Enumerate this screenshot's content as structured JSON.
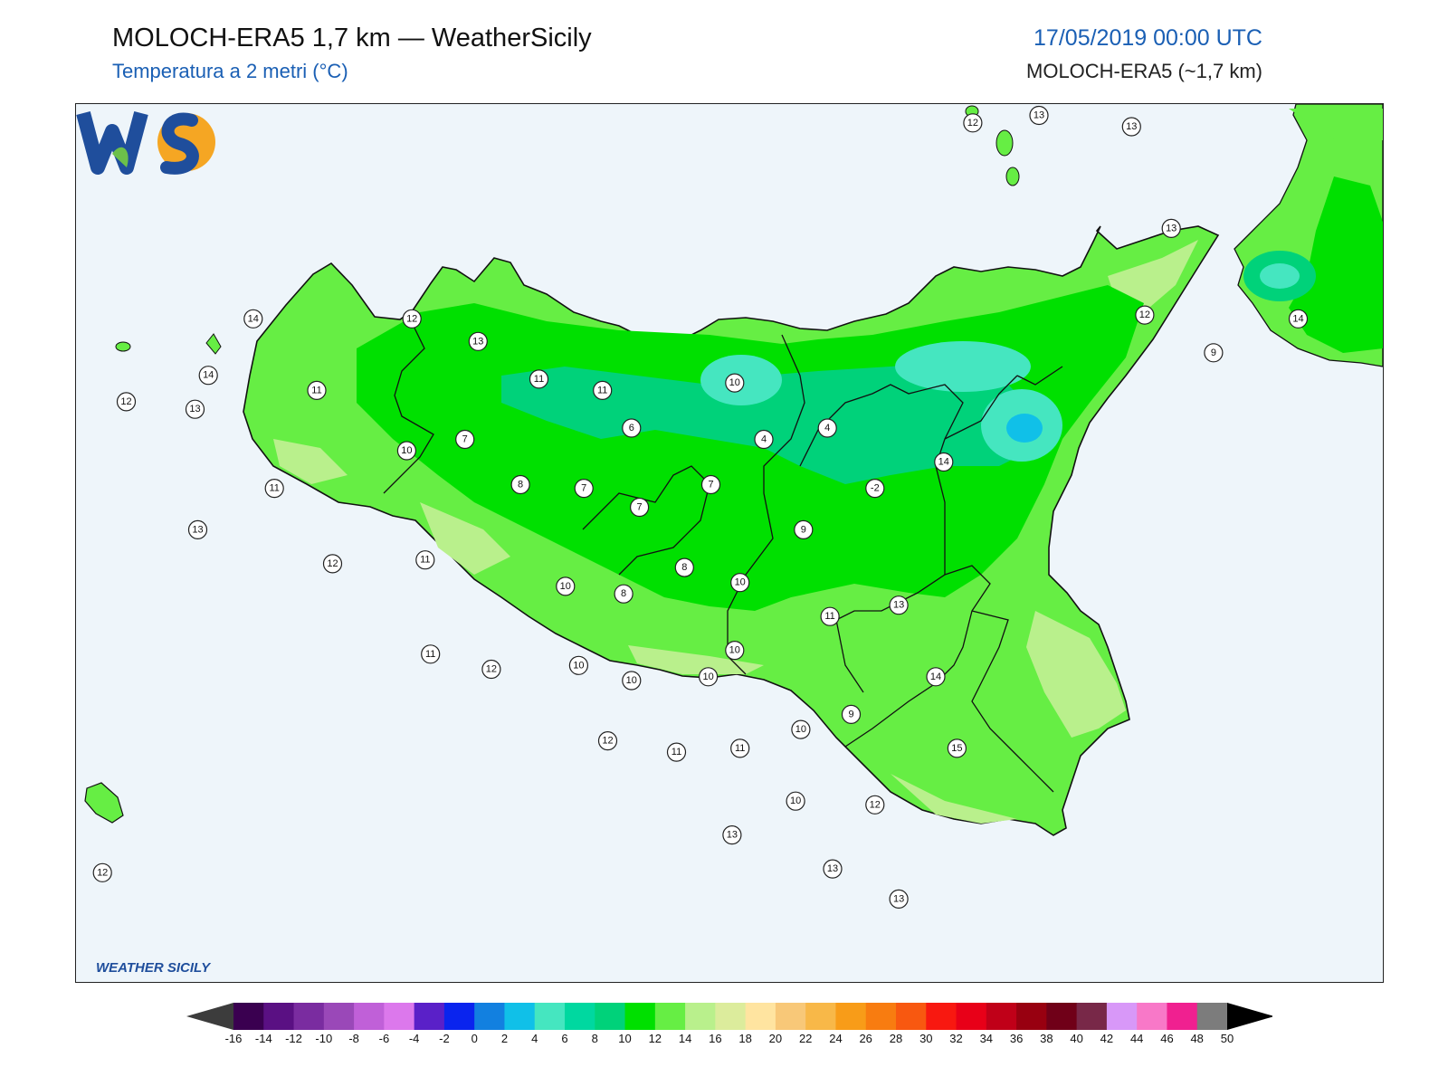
{
  "header": {
    "title": "MOLOCH-ERA5 1,7 km — WeatherSicily",
    "subtitle": "Temperatura a 2 metri (°C)",
    "datetime": "17/05/2019 00:00 UTC",
    "model": "MOLOCH-ERA5 (~1,7 km)"
  },
  "logo": {
    "text": "WEATHER SICILY",
    "mark": "WS"
  },
  "colors": {
    "sea": "#eef5fa",
    "temp_9_10": "#00e000",
    "temp_10_12": "#66ee44",
    "temp_12_14": "#b9f08c",
    "temp_6_8": "#00d27a",
    "temp_4_6": "#45e6c0",
    "coast": "#111111"
  },
  "colorbar": {
    "ticks": [
      "-16",
      "-14",
      "-12",
      "-10",
      "-8",
      "-6",
      "-4",
      "-2",
      "0",
      "2",
      "4",
      "6",
      "8",
      "10",
      "12",
      "14",
      "16",
      "18",
      "20",
      "22",
      "24",
      "26",
      "28",
      "30",
      "32",
      "34",
      "36",
      "38",
      "40",
      "42",
      "44",
      "46",
      "48",
      "50"
    ],
    "colors": [
      "#3a0050",
      "#5a1083",
      "#7a2ca0",
      "#9a48b8",
      "#c060d8",
      "#dc78ec",
      "#5a20c8",
      "#0a24ee",
      "#1280e0",
      "#10c0e8",
      "#45e6c0",
      "#00d8a0",
      "#00d27a",
      "#00e000",
      "#66ee44",
      "#b9f08c",
      "#dcec9c",
      "#ffe4a0",
      "#f8c878",
      "#f8b848",
      "#f89c18",
      "#f87c10",
      "#f85810",
      "#f81810",
      "#e80018",
      "#c00018",
      "#980010",
      "#700018",
      "#782848",
      "#d898f8",
      "#f878c8",
      "#f02090",
      "#7c7c7c",
      "#383838"
    ]
  },
  "stations": [
    {
      "value": "12",
      "x": 15.37,
      "y": 38.45
    },
    {
      "value": "13",
      "x": 15.62,
      "y": 38.47
    },
    {
      "value": "13",
      "x": 15.97,
      "y": 38.44
    },
    {
      "value": "13",
      "x": 16.12,
      "y": 38.17
    },
    {
      "value": "12",
      "x": 16.02,
      "y": 37.94
    },
    {
      "value": "14",
      "x": 16.6,
      "y": 37.93
    },
    {
      "value": "9",
      "x": 16.28,
      "y": 37.84
    },
    {
      "value": "12",
      "x": 12.17,
      "y": 37.71
    },
    {
      "value": "13",
      "x": 12.43,
      "y": 37.69
    },
    {
      "value": "14",
      "x": 12.65,
      "y": 37.93
    },
    {
      "value": "14",
      "x": 12.48,
      "y": 37.78
    },
    {
      "value": "12",
      "x": 13.25,
      "y": 37.93
    },
    {
      "value": "13",
      "x": 13.5,
      "y": 37.87
    },
    {
      "value": "11",
      "x": 13.73,
      "y": 37.77
    },
    {
      "value": "11",
      "x": 13.97,
      "y": 37.74
    },
    {
      "value": "10",
      "x": 14.47,
      "y": 37.76
    },
    {
      "value": "11",
      "x": 12.89,
      "y": 37.74
    },
    {
      "value": "10",
      "x": 13.23,
      "y": 37.58
    },
    {
      "value": "7",
      "x": 13.45,
      "y": 37.61
    },
    {
      "value": "6",
      "x": 14.08,
      "y": 37.64
    },
    {
      "value": "4",
      "x": 14.58,
      "y": 37.61
    },
    {
      "value": "4",
      "x": 14.82,
      "y": 37.64
    },
    {
      "value": "11",
      "x": 12.73,
      "y": 37.48
    },
    {
      "value": "8",
      "x": 13.66,
      "y": 37.49
    },
    {
      "value": "7",
      "x": 13.9,
      "y": 37.48
    },
    {
      "value": "7",
      "x": 14.11,
      "y": 37.43
    },
    {
      "value": "7",
      "x": 14.38,
      "y": 37.49
    },
    {
      "value": "-2",
      "x": 15.0,
      "y": 37.48
    },
    {
      "value": "14",
      "x": 15.26,
      "y": 37.55
    },
    {
      "value": "13",
      "x": 12.44,
      "y": 37.37
    },
    {
      "value": "9",
      "x": 14.73,
      "y": 37.37
    },
    {
      "value": "12",
      "x": 12.95,
      "y": 37.28
    },
    {
      "value": "11",
      "x": 13.3,
      "y": 37.29
    },
    {
      "value": "10",
      "x": 13.83,
      "y": 37.22
    },
    {
      "value": "8",
      "x": 14.05,
      "y": 37.2
    },
    {
      "value": "8",
      "x": 14.28,
      "y": 37.27
    },
    {
      "value": "10",
      "x": 14.49,
      "y": 37.23
    },
    {
      "value": "13",
      "x": 15.09,
      "y": 37.17
    },
    {
      "value": "11",
      "x": 14.83,
      "y": 37.14
    },
    {
      "value": "11",
      "x": 13.32,
      "y": 37.04
    },
    {
      "value": "12",
      "x": 13.55,
      "y": 37.0
    },
    {
      "value": "10",
      "x": 13.88,
      "y": 37.01
    },
    {
      "value": "10",
      "x": 14.47,
      "y": 37.05
    },
    {
      "value": "10",
      "x": 14.37,
      "y": 36.98
    },
    {
      "value": "10",
      "x": 14.08,
      "y": 36.97
    },
    {
      "value": "14",
      "x": 15.23,
      "y": 36.98
    },
    {
      "value": "9",
      "x": 14.91,
      "y": 36.88
    },
    {
      "value": "10",
      "x": 14.72,
      "y": 36.84
    },
    {
      "value": "12",
      "x": 13.99,
      "y": 36.81
    },
    {
      "value": "11",
      "x": 14.25,
      "y": 36.78
    },
    {
      "value": "11",
      "x": 14.49,
      "y": 36.79
    },
    {
      "value": "15",
      "x": 15.31,
      "y": 36.79
    },
    {
      "value": "10",
      "x": 14.7,
      "y": 36.65
    },
    {
      "value": "12",
      "x": 15.0,
      "y": 36.64
    },
    {
      "value": "13",
      "x": 14.46,
      "y": 36.56
    },
    {
      "value": "13",
      "x": 14.84,
      "y": 36.47
    },
    {
      "value": "13",
      "x": 15.09,
      "y": 36.39
    },
    {
      "value": "12",
      "x": 12.08,
      "y": 36.46
    }
  ]
}
